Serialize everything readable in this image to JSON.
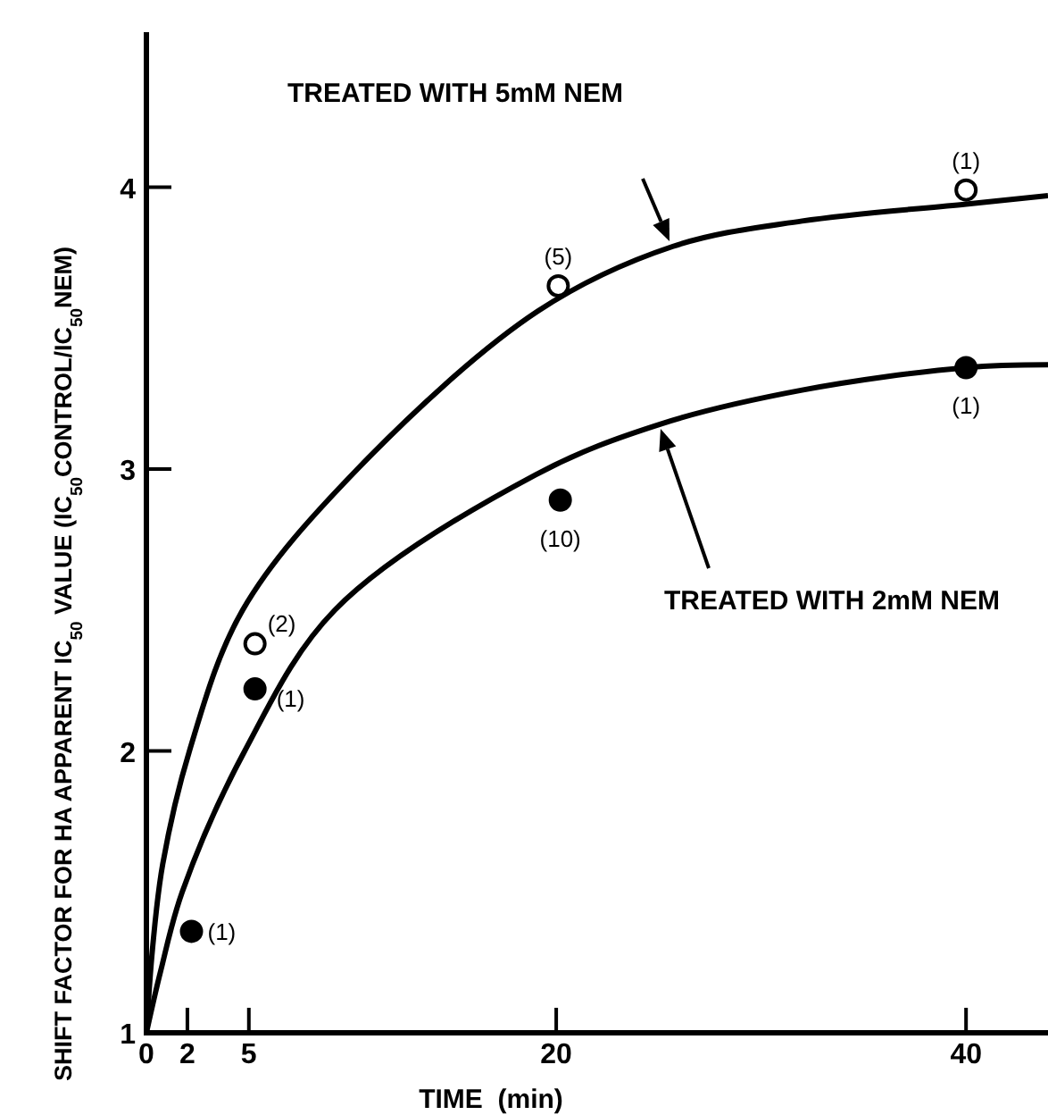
{
  "chart_data": {
    "type": "scatter",
    "xlabel": "TIME  (min)",
    "ylabel": "SHIFT FACTOR FOR HA APPARENT IC$_{50}$ VALUE (IC$_{50}$CONTROL/IC$_{50}$NEM)",
    "xlim": [
      0,
      44
    ],
    "ylim": [
      1,
      4.55
    ],
    "xticks": [
      0,
      2,
      5,
      20,
      40
    ],
    "yticks": [
      1,
      2,
      3,
      4
    ],
    "grid": false,
    "series": [
      {
        "type": "line",
        "color": "#000000",
        "marker": "none",
        "line_style": "solid",
        "x": [
          0,
          0.3,
          0.8,
          2.1,
          4.7,
          10.3,
          19.1,
          25.7,
          32,
          40,
          44
        ],
        "values": [
          1,
          1.3,
          1.6,
          2,
          2.5,
          3,
          3.56,
          3.79,
          3.88,
          3.94,
          3.97
        ]
      },
      {
        "type": "line",
        "color": "#000000",
        "marker": "none",
        "line_style": "solid",
        "x": [
          0,
          0.7,
          1.75,
          4.8,
          9.2,
          19,
          25.1,
          32,
          40,
          44
        ],
        "values": [
          1,
          1.22,
          1.5,
          2,
          2.5,
          2.98,
          3.16,
          3.28,
          3.36,
          3.37
        ]
      },
      {
        "color": "#ffffff",
        "marker": "circle",
        "x": [
          5.3,
          20.1,
          40
        ],
        "values": [
          2.38,
          3.65,
          3.99
        ]
      },
      {
        "color": "#000000",
        "marker": "circle",
        "x": [
          2.2,
          5.3,
          20.2,
          40
        ],
        "values": [
          1.36,
          2.22,
          2.89,
          3.36
        ]
      }
    ],
    "annotations": [
      "TREATED WITH 5mM NEM",
      "TREATED WITH 2mM NEM",
      {
        "text": "(2)",
        "x": 5.3,
        "y": 2.38
      },
      {
        "text": "(5)",
        "x": 20.1,
        "y": 3.65
      },
      {
        "text": "(1)",
        "x": 40,
        "y": 3.99
      },
      {
        "text": "(1)",
        "x": 2.2,
        "y": 1.36
      },
      {
        "text": "(1)",
        "x": 5.3,
        "y": 2.22
      },
      {
        "text": "(10)",
        "x": 20.2,
        "y": 2.89
      },
      {
        "text": "(1)",
        "x": 40,
        "y": 3.36
      }
    ]
  }
}
